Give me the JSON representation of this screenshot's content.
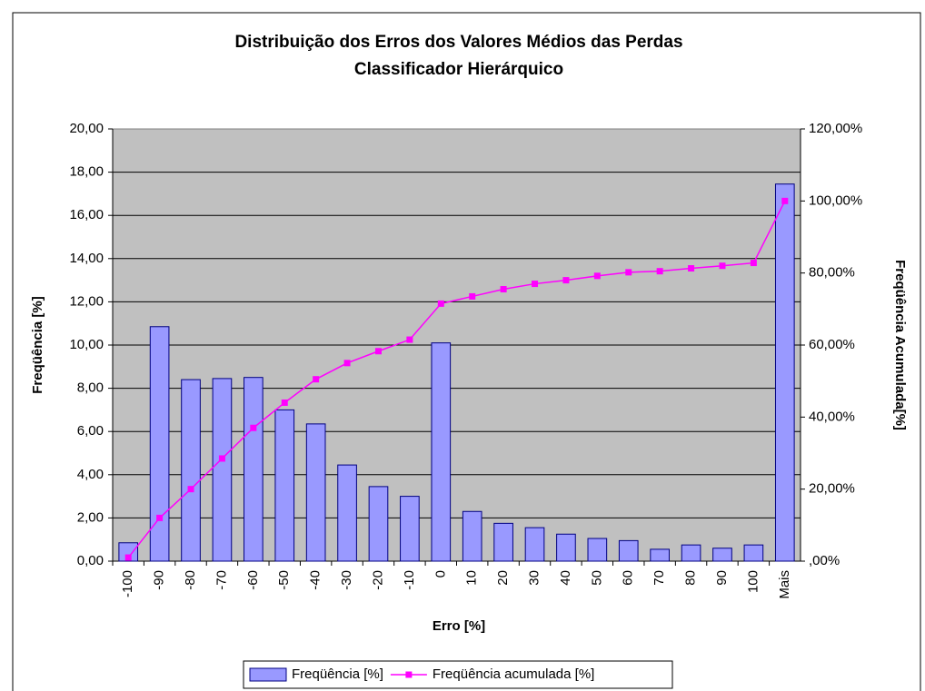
{
  "chart_data": {
    "type": "bar",
    "title": "Distribuição dos Erros dos Valores Médios das Perdas",
    "subtitle": "Classificador Hierárquico",
    "x_label": "Erro [%]",
    "y_label": "Freqüência [%]",
    "y2_label": "Freqüência Acumulada[%]",
    "categories": [
      "-100",
      "-90",
      "-80",
      "-70",
      "-60",
      "-50",
      "-40",
      "-30",
      "-20",
      "-10",
      "0",
      "10",
      "20",
      "30",
      "40",
      "50",
      "60",
      "70",
      "80",
      "90",
      "100",
      "Mais"
    ],
    "series": [
      {
        "name": "Freqüência [%]",
        "color": "#9999ff",
        "values": [
          0.85,
          10.85,
          8.4,
          8.45,
          8.5,
          7.0,
          6.35,
          4.45,
          3.45,
          3.0,
          10.1,
          2.3,
          1.75,
          1.55,
          1.25,
          1.05,
          0.95,
          0.55,
          0.75,
          0.6,
          0.75,
          17.45
        ]
      },
      {
        "name": "Freqüência acumulada [%]",
        "color": "#ff00ff",
        "type": "line",
        "axis": "y2",
        "values": [
          1,
          12,
          20,
          28.5,
          37,
          44,
          50.5,
          55,
          58.3,
          61.5,
          71.5,
          73.5,
          75.5,
          77,
          78,
          79.2,
          80.2,
          80.5,
          81.3,
          82,
          82.8,
          100
        ]
      }
    ],
    "ylim": [
      0,
      20
    ],
    "yticks": [
      {
        "value": 0,
        "label": "0,00"
      },
      {
        "value": 2,
        "label": "2,00"
      },
      {
        "value": 4,
        "label": "4,00"
      },
      {
        "value": 6,
        "label": "6,00"
      },
      {
        "value": 8,
        "label": "8,00"
      },
      {
        "value": 10,
        "label": "10,00"
      },
      {
        "value": 12,
        "label": "12,00"
      },
      {
        "value": 14,
        "label": "14,00"
      },
      {
        "value": 16,
        "label": "16,00"
      },
      {
        "value": 18,
        "label": "18,00"
      },
      {
        "value": 20,
        "label": "20,00"
      }
    ],
    "y2lim": [
      0,
      120
    ],
    "y2ticks": [
      {
        "value": 0,
        "label": ",00%"
      },
      {
        "value": 20,
        "label": "20,00%"
      },
      {
        "value": 40,
        "label": "40,00%"
      },
      {
        "value": 60,
        "label": "60,00%"
      },
      {
        "value": 80,
        "label": "80,00%"
      },
      {
        "value": 100,
        "label": "100,00%"
      },
      {
        "value": 120,
        "label": "120,00%"
      }
    ],
    "grid": true,
    "legend": "bottom"
  }
}
